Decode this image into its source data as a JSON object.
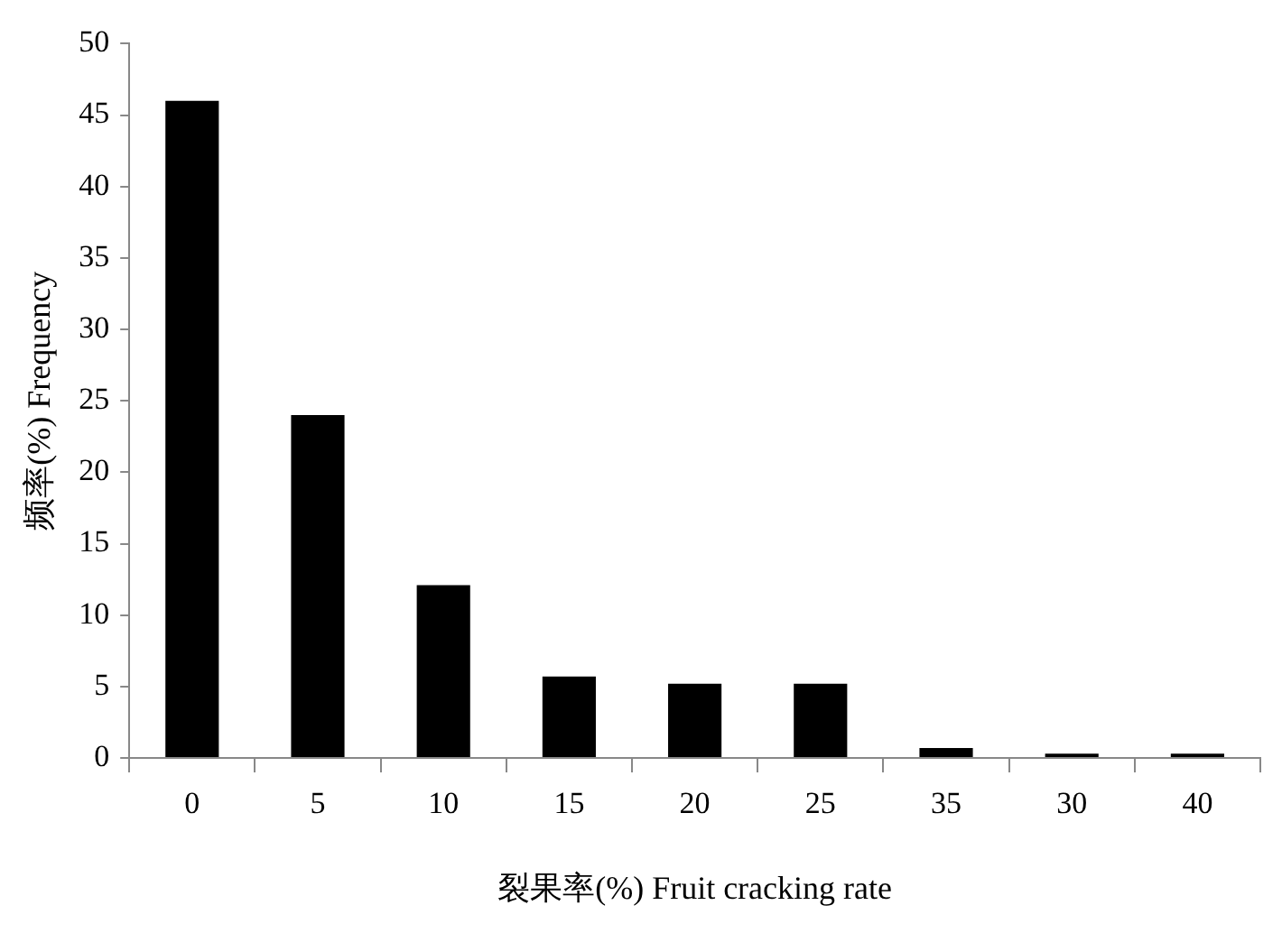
{
  "chart_data": {
    "type": "bar",
    "xlabel": "裂果率(%) Fruit cracking rate",
    "ylabel": "频率(%) Frequency",
    "categories": [
      "0",
      "5",
      "10",
      "15",
      "20",
      "25",
      "35",
      "30",
      "40"
    ],
    "values": [
      46,
      24,
      12.1,
      5.7,
      5.2,
      5.2,
      0.7,
      0.3,
      0.3
    ],
    "color": "#000000",
    "ylim": [
      0,
      50
    ],
    "yticks": [
      0,
      5,
      10,
      15,
      20,
      25,
      30,
      35,
      40,
      45,
      50
    ],
    "grid": false
  }
}
